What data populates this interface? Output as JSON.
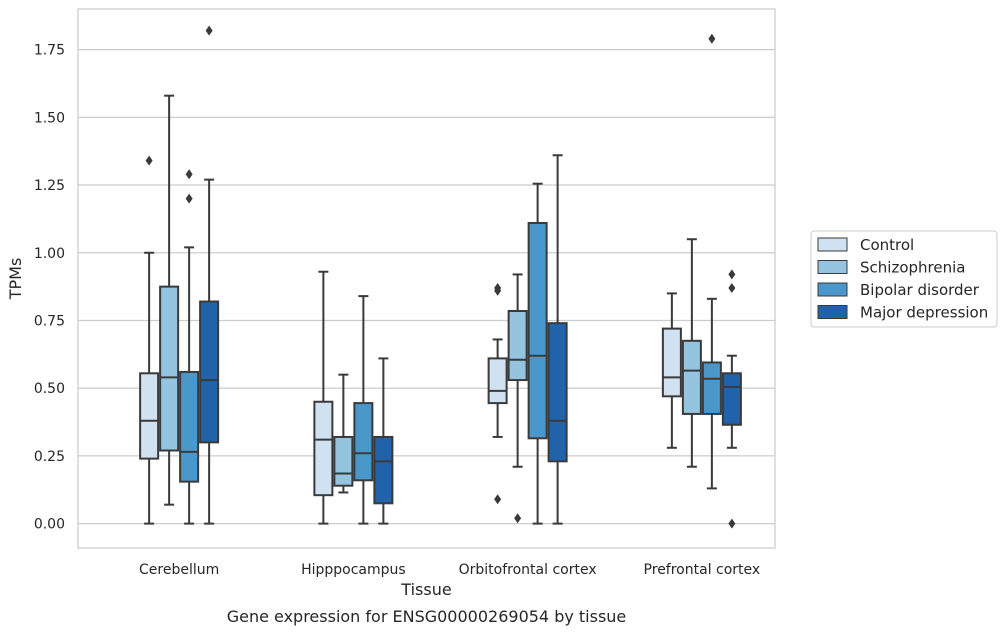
{
  "chart_data": {
    "type": "boxplot",
    "caption": "Gene expression for ENSG00000269054 by tissue",
    "xlabel": "Tissue",
    "ylabel": "TPMs",
    "ylim": [
      -0.09,
      1.9
    ],
    "yticks": [
      "0.00",
      "0.25",
      "0.50",
      "0.75",
      "1.00",
      "1.25",
      "1.50",
      "1.75"
    ],
    "ytick_values": [
      0,
      0.25,
      0.5,
      0.75,
      1.0,
      1.25,
      1.5,
      1.75
    ],
    "grid": true,
    "legend_position": "right",
    "categories": [
      "Cerebellum",
      "Hipppocampus",
      "Orbitofrontal cortex",
      "Prefrontal cortex"
    ],
    "series": [
      {
        "name": "Control",
        "color": "#d0e1f2",
        "boxes": [
          {
            "whislo": 0.0,
            "q1": 0.24,
            "med": 0.38,
            "q3": 0.555,
            "whishi": 1.0,
            "fliers": [
              1.34
            ]
          },
          {
            "whislo": 0.0,
            "q1": 0.105,
            "med": 0.31,
            "q3": 0.45,
            "whishi": 0.93,
            "fliers": []
          },
          {
            "whislo": 0.32,
            "q1": 0.445,
            "med": 0.49,
            "q3": 0.61,
            "whishi": 0.68,
            "fliers": [
              0.86,
              0.87,
              0.09
            ]
          },
          {
            "whislo": 0.28,
            "q1": 0.47,
            "med": 0.54,
            "q3": 0.72,
            "whishi": 0.85,
            "fliers": []
          }
        ]
      },
      {
        "name": "Schizophrenia",
        "color": "#94c4df",
        "boxes": [
          {
            "whislo": 0.07,
            "q1": 0.27,
            "med": 0.54,
            "q3": 0.875,
            "whishi": 1.58,
            "fliers": []
          },
          {
            "whislo": 0.115,
            "q1": 0.14,
            "med": 0.185,
            "q3": 0.32,
            "whishi": 0.55,
            "fliers": []
          },
          {
            "whislo": 0.21,
            "q1": 0.53,
            "med": 0.605,
            "q3": 0.785,
            "whishi": 0.92,
            "fliers": [
              0.02
            ]
          },
          {
            "whislo": 0.21,
            "q1": 0.405,
            "med": 0.565,
            "q3": 0.675,
            "whishi": 1.05,
            "fliers": []
          }
        ]
      },
      {
        "name": "Bipolar disorder",
        "color": "#4a98c9",
        "boxes": [
          {
            "whislo": 0.0,
            "q1": 0.155,
            "med": 0.265,
            "q3": 0.56,
            "whishi": 1.02,
            "fliers": [
              1.2,
              1.29
            ]
          },
          {
            "whislo": 0.0,
            "q1": 0.16,
            "med": 0.26,
            "q3": 0.445,
            "whishi": 0.84,
            "fliers": []
          },
          {
            "whislo": 0.0,
            "q1": 0.315,
            "med": 0.62,
            "q3": 1.11,
            "whishi": 1.255,
            "fliers": []
          },
          {
            "whislo": 0.13,
            "q1": 0.405,
            "med": 0.535,
            "q3": 0.595,
            "whishi": 0.83,
            "fliers": [
              1.79
            ]
          }
        ]
      },
      {
        "name": "Major depression",
        "color": "#2163aa",
        "boxes": [
          {
            "whislo": 0.0,
            "q1": 0.3,
            "med": 0.53,
            "q3": 0.82,
            "whishi": 1.27,
            "fliers": [
              1.82
            ]
          },
          {
            "whislo": 0.0,
            "q1": 0.075,
            "med": 0.23,
            "q3": 0.32,
            "whishi": 0.61,
            "fliers": []
          },
          {
            "whislo": 0.0,
            "q1": 0.23,
            "med": 0.38,
            "q3": 0.74,
            "whishi": 1.36,
            "fliers": []
          },
          {
            "whislo": 0.28,
            "q1": 0.365,
            "med": 0.505,
            "q3": 0.555,
            "whishi": 0.62,
            "fliers": [
              0.92,
              0.87,
              0.0
            ]
          }
        ]
      }
    ]
  }
}
